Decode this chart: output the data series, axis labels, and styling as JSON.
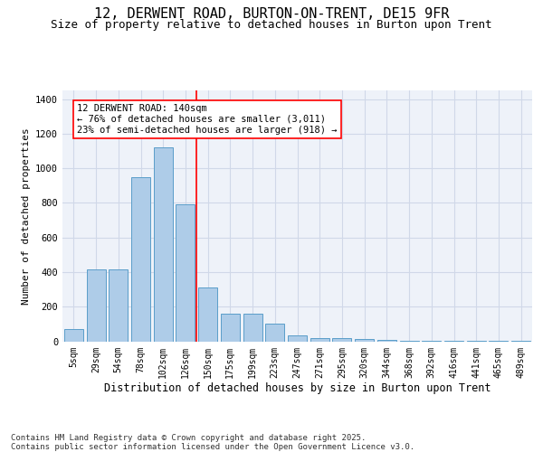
{
  "title1": "12, DERWENT ROAD, BURTON-ON-TRENT, DE15 9FR",
  "title2": "Size of property relative to detached houses in Burton upon Trent",
  "xlabel": "Distribution of detached houses by size in Burton upon Trent",
  "ylabel": "Number of detached properties",
  "categories": [
    "5sqm",
    "29sqm",
    "54sqm",
    "78sqm",
    "102sqm",
    "126sqm",
    "150sqm",
    "175sqm",
    "199sqm",
    "223sqm",
    "247sqm",
    "271sqm",
    "295sqm",
    "320sqm",
    "344sqm",
    "368sqm",
    "392sqm",
    "416sqm",
    "441sqm",
    "465sqm",
    "489sqm"
  ],
  "values": [
    68,
    415,
    415,
    950,
    1120,
    790,
    310,
    160,
    160,
    100,
    33,
    20,
    18,
    15,
    10,
    3,
    3,
    3,
    3,
    3,
    3
  ],
  "bar_color": "#aecce8",
  "bar_edge_color": "#5a9ec9",
  "grid_color": "#d0d8e8",
  "bg_color": "#eef2f9",
  "annotation_text": "12 DERWENT ROAD: 140sqm\n← 76% of detached houses are smaller (3,011)\n23% of semi-detached houses are larger (918) →",
  "vline_position": 5.5,
  "ylim": [
    0,
    1450
  ],
  "yticks": [
    0,
    200,
    400,
    600,
    800,
    1000,
    1200,
    1400
  ],
  "footer": "Contains HM Land Registry data © Crown copyright and database right 2025.\nContains public sector information licensed under the Open Government Licence v3.0.",
  "title_fontsize": 11,
  "subtitle_fontsize": 9,
  "tick_fontsize": 7,
  "ylabel_fontsize": 8,
  "xlabel_fontsize": 8.5,
  "footer_fontsize": 6.5,
  "annotation_fontsize": 7.5
}
